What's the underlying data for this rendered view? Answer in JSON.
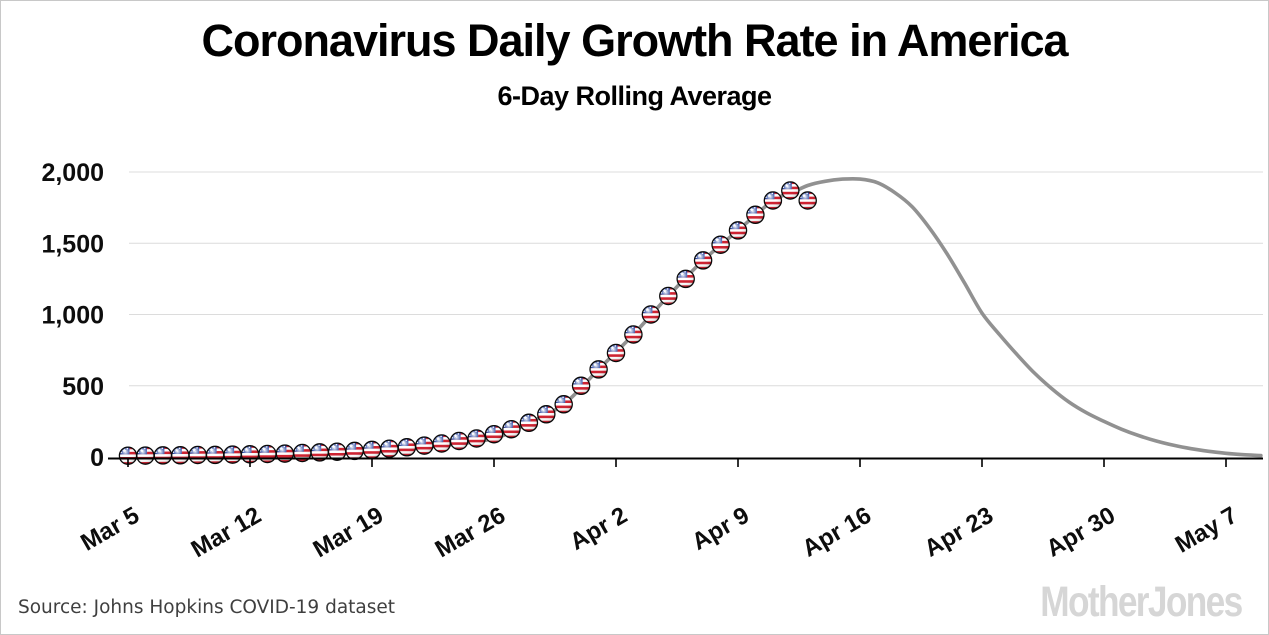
{
  "header": {
    "title": "Coronavirus Daily Growth Rate in America",
    "subtitle": "6-Day Rolling Average"
  },
  "footer": {
    "source": "Source: Johns Hopkins COVID-19 dataset",
    "logo_text": "MotherJones"
  },
  "colors": {
    "curve": "#919191",
    "grid": "#dcdcdc",
    "axis": "#000000",
    "tick_label": "#0d0d0d",
    "ball_red": "#cf1f2e",
    "ball_blue": "#203f9e",
    "ball_outline": "#0a0a0a",
    "source_text": "#3f3f3f",
    "logo_gray": "#d6d6d6"
  },
  "chart_data": {
    "type": "scatter",
    "title": "Coronavirus Daily Growth Rate in America",
    "subtitle": "6-Day Rolling Average",
    "xlabel": "",
    "ylabel": "",
    "grid": "horizontal-on",
    "legend": "none",
    "x_axis": {
      "tick_labels": [
        "Mar 5",
        "Mar 12",
        "Mar 19",
        "Mar 26",
        "Apr 2",
        "Apr 9",
        "Apr 16",
        "Apr 23",
        "Apr 30",
        "May 7"
      ],
      "tick_day_offsets": [
        0,
        7,
        14,
        21,
        28,
        35,
        42,
        49,
        56,
        63
      ],
      "label_rotation_deg": -30
    },
    "y_axis": {
      "tick_values": [
        0,
        500,
        1000,
        1500,
        2000
      ],
      "tick_labels": [
        "0",
        "500",
        "1,000",
        "1,500",
        "2,000"
      ],
      "range": [
        0,
        2100
      ]
    },
    "series": [
      {
        "name": "daily-growth-6day-rolling-average",
        "marker": "us-flag-ball",
        "dates": [
          "Mar 5",
          "Mar 6",
          "Mar 7",
          "Mar 8",
          "Mar 9",
          "Mar 10",
          "Mar 11",
          "Mar 12",
          "Mar 13",
          "Mar 14",
          "Mar 15",
          "Mar 16",
          "Mar 17",
          "Mar 18",
          "Mar 19",
          "Mar 20",
          "Mar 21",
          "Mar 22",
          "Mar 23",
          "Mar 24",
          "Mar 25",
          "Mar 26",
          "Mar 27",
          "Mar 28",
          "Mar 29",
          "Mar 30",
          "Mar 31",
          "Apr 1",
          "Apr 2",
          "Apr 3",
          "Apr 4",
          "Apr 5",
          "Apr 6",
          "Apr 7",
          "Apr 8",
          "Apr 9",
          "Apr 10",
          "Apr 11",
          "Apr 12",
          "Apr 13"
        ],
        "values": [
          9,
          10,
          11,
          12,
          14,
          15,
          17,
          19,
          21,
          24,
          28,
          32,
          37,
          43,
          50,
          58,
          68,
          80,
          95,
          112,
          130,
          160,
          195,
          240,
          300,
          370,
          500,
          615,
          730,
          860,
          1000,
          1130,
          1250,
          1380,
          1490,
          1590,
          1700,
          1800,
          1870,
          1800
        ]
      },
      {
        "name": "fitted-projection-curve",
        "type": "line",
        "peak_value": 1950,
        "peak_date": "Apr 15",
        "day_offsets": [
          0,
          4,
          8,
          12,
          15,
          18,
          21,
          23,
          25,
          27,
          29,
          31,
          33,
          35,
          37,
          38,
          39,
          40,
          41,
          42,
          43,
          44,
          45,
          46,
          47,
          48,
          49,
          50,
          51,
          52,
          53,
          54,
          55,
          56,
          57,
          58,
          59,
          60,
          61,
          62,
          63,
          64,
          65
        ],
        "values": [
          9,
          14,
          21,
          32,
          50,
          80,
          130,
          240,
          370,
          615,
          860,
          1130,
          1380,
          1590,
          1800,
          1850,
          1905,
          1935,
          1950,
          1950,
          1925,
          1855,
          1755,
          1605,
          1425,
          1220,
          1010,
          860,
          720,
          590,
          480,
          385,
          310,
          250,
          195,
          150,
          112,
          82,
          58,
          40,
          26,
          16,
          10
        ]
      }
    ]
  }
}
